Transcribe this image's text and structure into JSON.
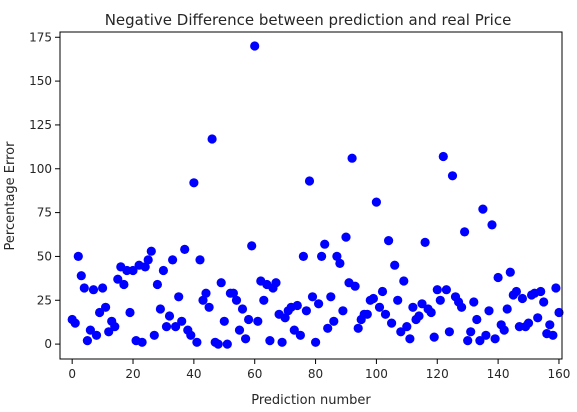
{
  "chart_data": {
    "type": "scatter",
    "title": "Negative Difference between prediction and real Price",
    "xlabel": "Prediction number",
    "ylabel": "Percentage Error",
    "xlim": [
      -4,
      161
    ],
    "ylim": [
      -8.5,
      178
    ],
    "xticks": [
      0,
      20,
      40,
      60,
      80,
      100,
      120,
      140,
      160
    ],
    "yticks": [
      0,
      25,
      50,
      75,
      100,
      125,
      150,
      175
    ],
    "grid": false,
    "marker_color": "#0000ff",
    "series": [
      {
        "points": [
          [
            0,
            14
          ],
          [
            1,
            12
          ],
          [
            2,
            50
          ],
          [
            3,
            39
          ],
          [
            4,
            32
          ],
          [
            5,
            2
          ],
          [
            6,
            8
          ],
          [
            7,
            31
          ],
          [
            8,
            5
          ],
          [
            9,
            18
          ],
          [
            10,
            32
          ],
          [
            11,
            21
          ],
          [
            12,
            7
          ],
          [
            13,
            13
          ],
          [
            14,
            10
          ],
          [
            15,
            37
          ],
          [
            16,
            44
          ],
          [
            17,
            34
          ],
          [
            18,
            42
          ],
          [
            19,
            18
          ],
          [
            20,
            42
          ],
          [
            21,
            2
          ],
          [
            22,
            45
          ],
          [
            23,
            1
          ],
          [
            24,
            44
          ],
          [
            25,
            48
          ],
          [
            26,
            53
          ],
          [
            27,
            5
          ],
          [
            28,
            34
          ],
          [
            29,
            20
          ],
          [
            30,
            42
          ],
          [
            31,
            10
          ],
          [
            32,
            16
          ],
          [
            33,
            48
          ],
          [
            34,
            10
          ],
          [
            35,
            27
          ],
          [
            36,
            13
          ],
          [
            37,
            54
          ],
          [
            38,
            8
          ],
          [
            39,
            5
          ],
          [
            40,
            92
          ],
          [
            41,
            1
          ],
          [
            42,
            48
          ],
          [
            43,
            25
          ],
          [
            44,
            29
          ],
          [
            45,
            21
          ],
          [
            46,
            117
          ],
          [
            47,
            1
          ],
          [
            48,
            0
          ],
          [
            49,
            35
          ],
          [
            50,
            13
          ],
          [
            51,
            0
          ],
          [
            52,
            29
          ],
          [
            53,
            29
          ],
          [
            54,
            25
          ],
          [
            55,
            8
          ],
          [
            56,
            20
          ],
          [
            57,
            3
          ],
          [
            58,
            14
          ],
          [
            59,
            56
          ],
          [
            60,
            170
          ],
          [
            61,
            13
          ],
          [
            62,
            36
          ],
          [
            63,
            25
          ],
          [
            64,
            34
          ],
          [
            65,
            2
          ],
          [
            66,
            32
          ],
          [
            67,
            35
          ],
          [
            68,
            17
          ],
          [
            69,
            1
          ],
          [
            70,
            15
          ],
          [
            71,
            19
          ],
          [
            72,
            21
          ],
          [
            73,
            8
          ],
          [
            74,
            22
          ],
          [
            75,
            5
          ],
          [
            76,
            50
          ],
          [
            77,
            19
          ],
          [
            78,
            93
          ],
          [
            79,
            27
          ],
          [
            80,
            1
          ],
          [
            81,
            23
          ],
          [
            82,
            50
          ],
          [
            83,
            57
          ],
          [
            84,
            9
          ],
          [
            85,
            27
          ],
          [
            86,
            13
          ],
          [
            87,
            50
          ],
          [
            88,
            46
          ],
          [
            89,
            19
          ],
          [
            90,
            61
          ],
          [
            91,
            35
          ],
          [
            92,
            106
          ],
          [
            93,
            33
          ],
          [
            94,
            9
          ],
          [
            95,
            14
          ],
          [
            96,
            17
          ],
          [
            97,
            17
          ],
          [
            98,
            25
          ],
          [
            99,
            26
          ],
          [
            100,
            81
          ],
          [
            101,
            21
          ],
          [
            102,
            30
          ],
          [
            103,
            17
          ],
          [
            104,
            59
          ],
          [
            105,
            12
          ],
          [
            106,
            45
          ],
          [
            107,
            25
          ],
          [
            108,
            7
          ],
          [
            109,
            36
          ],
          [
            110,
            10
          ],
          [
            111,
            3
          ],
          [
            112,
            21
          ],
          [
            113,
            14
          ],
          [
            114,
            16
          ],
          [
            115,
            23
          ],
          [
            116,
            58
          ],
          [
            117,
            20
          ],
          [
            118,
            18
          ],
          [
            119,
            4
          ],
          [
            120,
            31
          ],
          [
            121,
            25
          ],
          [
            122,
            107
          ],
          [
            123,
            31
          ],
          [
            124,
            7
          ],
          [
            125,
            96
          ],
          [
            126,
            27
          ],
          [
            127,
            24
          ],
          [
            128,
            21
          ],
          [
            129,
            64
          ],
          [
            130,
            2
          ],
          [
            131,
            7
          ],
          [
            132,
            24
          ],
          [
            133,
            14
          ],
          [
            134,
            2
          ],
          [
            135,
            77
          ],
          [
            136,
            5
          ],
          [
            137,
            19
          ],
          [
            138,
            68
          ],
          [
            139,
            3
          ],
          [
            140,
            38
          ],
          [
            141,
            11
          ],
          [
            142,
            8
          ],
          [
            143,
            20
          ],
          [
            144,
            41
          ],
          [
            145,
            28
          ],
          [
            146,
            30
          ],
          [
            147,
            10
          ],
          [
            148,
            26
          ],
          [
            149,
            10
          ],
          [
            150,
            12
          ],
          [
            151,
            28
          ],
          [
            152,
            29
          ],
          [
            153,
            15
          ],
          [
            154,
            30
          ],
          [
            155,
            24
          ],
          [
            156,
            6
          ],
          [
            157,
            11
          ],
          [
            158,
            5
          ],
          [
            159,
            32
          ],
          [
            160,
            18
          ]
        ]
      }
    ]
  }
}
